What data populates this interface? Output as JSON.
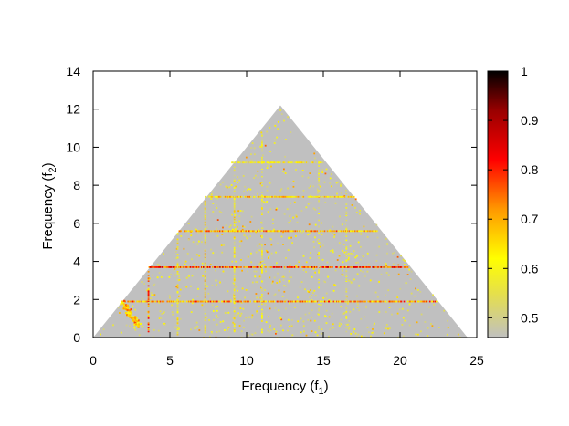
{
  "chart_data": {
    "type": "heatmap",
    "title": "",
    "xlabel": {
      "text": "Frequency (f",
      "sub": "1",
      "close": ")"
    },
    "ylabel": {
      "text": "Frequency (f",
      "sub": "2",
      "close": ")"
    },
    "xlim": [
      0,
      25
    ],
    "ylim": [
      0,
      14
    ],
    "xticks": [
      0,
      5,
      10,
      15,
      20,
      25
    ],
    "yticks": [
      0,
      2,
      4,
      6,
      8,
      10,
      12,
      14
    ],
    "grid": false,
    "domain_triangle": {
      "vertices": [
        [
          0,
          0
        ],
        [
          12.2,
          12.2
        ],
        [
          24.4,
          0
        ]
      ],
      "background_color": "#c0c0c0"
    },
    "colorbar": {
      "range": [
        0.46,
        1.0
      ],
      "ticks": [
        0.5,
        0.6,
        0.7,
        0.8,
        0.9,
        1
      ],
      "tick_labels": [
        "0.5",
        "0.6",
        "0.7",
        "0.8",
        "0.9",
        "1"
      ],
      "stops": [
        {
          "v": 0.46,
          "color": "#c0c0c0"
        },
        {
          "v": 0.55,
          "color": "#e6e04a"
        },
        {
          "v": 0.62,
          "color": "#ffff00"
        },
        {
          "v": 0.72,
          "color": "#ff9900"
        },
        {
          "v": 0.82,
          "color": "#ff0000"
        },
        {
          "v": 0.92,
          "color": "#990000"
        },
        {
          "v": 1.0,
          "color": "#000000"
        }
      ]
    },
    "prominent_lines": [
      {
        "orientation": "horizontal",
        "y": 3.7,
        "x": [
          3.6,
          20.5
        ],
        "value": 0.88
      },
      {
        "orientation": "horizontal",
        "y": 1.9,
        "x": [
          1.8,
          22.5
        ],
        "value": 0.82
      },
      {
        "orientation": "horizontal",
        "y": 5.6,
        "x": [
          5.5,
          18.5
        ],
        "value": 0.8
      },
      {
        "orientation": "horizontal",
        "y": 7.4,
        "x": [
          7.3,
          17.0
        ],
        "value": 0.75
      },
      {
        "orientation": "horizontal",
        "y": 9.2,
        "x": [
          9.0,
          15.0
        ],
        "value": 0.68
      },
      {
        "orientation": "vertical",
        "x": 3.6,
        "y": [
          0.2,
          3.6
        ],
        "value": 0.85
      },
      {
        "orientation": "vertical",
        "x": 5.5,
        "y": [
          0.2,
          5.5
        ],
        "value": 0.7
      },
      {
        "orientation": "vertical",
        "x": 7.3,
        "y": [
          0.3,
          7.2
        ],
        "value": 0.72
      },
      {
        "orientation": "vertical",
        "x": 9.2,
        "y": [
          0.3,
          9.1
        ],
        "value": 0.68
      },
      {
        "orientation": "vertical",
        "x": 11.0,
        "y": [
          0.3,
          10.9
        ],
        "value": 0.65
      },
      {
        "orientation": "vertical",
        "x": 14.7,
        "y": [
          0.3,
          9.5
        ],
        "value": 0.62
      },
      {
        "orientation": "vertical",
        "x": 16.5,
        "y": [
          0.3,
          7.7
        ],
        "value": 0.62
      }
    ],
    "hotspot_cluster": {
      "description_values": [
        [
          1.9,
          1.9
        ],
        [
          2.2,
          1.5
        ],
        [
          2.6,
          1.0
        ],
        [
          3.0,
          0.6
        ]
      ],
      "value": 0.78
    }
  }
}
